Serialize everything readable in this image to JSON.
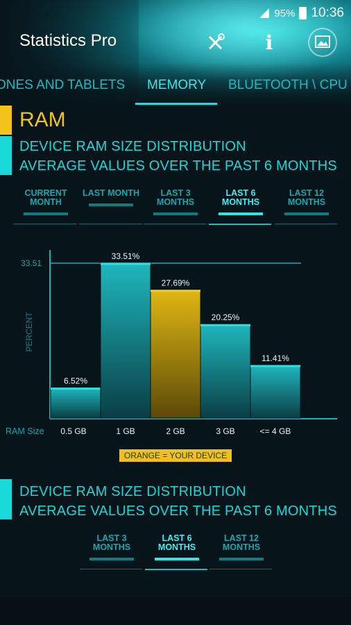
{
  "status_bar": {
    "battery": "95%",
    "time": "10:36"
  },
  "app": {
    "title": "Statistics Pro"
  },
  "header_icons": [
    "tools-icon",
    "info-icon",
    "image-icon"
  ],
  "tabs": [
    {
      "label": "ONES AND TABLETS",
      "active": false
    },
    {
      "label": "MEMORY",
      "active": true
    },
    {
      "label": "BLUETOOTH \\ CPU V",
      "active": false
    }
  ],
  "section1": {
    "title": "RAM",
    "subtitle1": "DEVICE RAM SIZE DISTRIBUTION",
    "subtitle2": "AVERAGE VALUES OVER THE PAST 6 MONTHS"
  },
  "period_tabs_1": [
    {
      "line1": "CURRENT",
      "line2": "MONTH",
      "active": false
    },
    {
      "line1": "LAST MONTH",
      "line2": "",
      "active": false
    },
    {
      "line1": "LAST 3",
      "line2": "MONTHS",
      "active": false
    },
    {
      "line1": "LAST 6",
      "line2": "MONTHS",
      "active": true
    },
    {
      "line1": "LAST 12",
      "line2": "MONTHS",
      "active": false
    }
  ],
  "chart_data": {
    "type": "bar",
    "ylabel": "PERCENT",
    "xlabel": "RAM Size",
    "categories": [
      "0.5 GB",
      "1 GB",
      "2 GB",
      "3 GB",
      "<= 4 GB"
    ],
    "values": [
      6.52,
      33.51,
      27.69,
      20.25,
      11.41
    ],
    "value_labels": [
      "6.52%",
      "33.51%",
      "27.69%",
      "20.25%",
      "11.41%"
    ],
    "ymax_label": "33.51",
    "highlight_index": 2,
    "colors": {
      "default": "#1aa8ae",
      "highlight": "#d9b116"
    }
  },
  "legend": {
    "text": "ORANGE = YOUR DEVICE"
  },
  "section2": {
    "subtitle1": "DEVICE RAM SIZE DISTRIBUTION",
    "subtitle2": "AVERAGE VALUES OVER THE PAST 6 MONTHS"
  },
  "period_tabs_2": [
    {
      "line1": "LAST 3",
      "line2": "MONTHS",
      "active": false
    },
    {
      "line1": "LAST 6",
      "line2": "MONTHS",
      "active": true
    },
    {
      "line1": "LAST 12",
      "line2": "MONTHS",
      "active": false
    }
  ]
}
